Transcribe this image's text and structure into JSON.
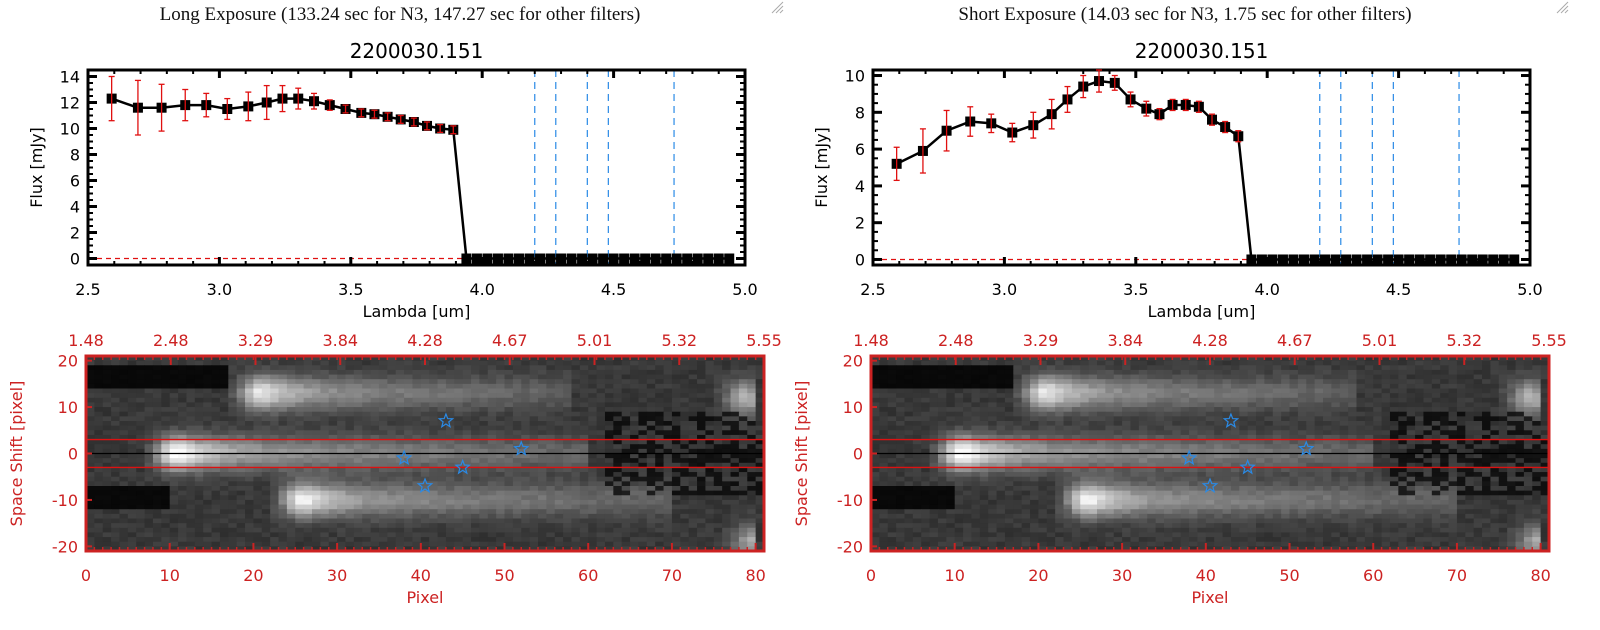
{
  "chart_data": [
    {
      "type": "line",
      "caption": "Long Exposure (133.24 sec for N3, 147.27 sec for other filters)",
      "title": "2200030.151",
      "xlabel": "Lambda [um]",
      "ylabel": "Flux [mJy]",
      "xlim": [
        2.5,
        5.0
      ],
      "ylim": [
        -0.5,
        14.5
      ],
      "xticks": [
        "2.5",
        "3.0",
        "3.5",
        "4.0",
        "4.5",
        "5.0"
      ],
      "yticks": [
        "0",
        "2",
        "4",
        "6",
        "8",
        "10",
        "12",
        "14"
      ],
      "filter_lines_x": [
        4.2,
        4.28,
        4.4,
        4.48,
        4.73
      ],
      "zero_line": 0,
      "series": [
        {
          "name": "flux",
          "x": [
            2.59,
            2.69,
            2.78,
            2.87,
            2.95,
            3.03,
            3.11,
            3.18,
            3.24,
            3.3,
            3.36,
            3.42,
            3.48,
            3.54,
            3.59,
            3.64,
            3.69,
            3.74,
            3.79,
            3.84,
            3.89,
            3.94,
            3.98,
            4.02,
            4.06,
            4.1,
            4.14,
            4.18,
            4.22,
            4.26,
            4.3,
            4.34,
            4.38,
            4.42,
            4.46,
            4.5,
            4.54,
            4.58,
            4.62,
            4.66,
            4.7,
            4.74,
            4.78,
            4.82,
            4.86,
            4.9,
            4.94
          ],
          "y": [
            12.3,
            11.6,
            11.6,
            11.8,
            11.8,
            11.5,
            11.7,
            12.0,
            12.3,
            12.3,
            12.1,
            11.8,
            11.5,
            11.2,
            11.1,
            10.9,
            10.7,
            10.5,
            10.2,
            10.0,
            9.9,
            0,
            0,
            0,
            0,
            0,
            0,
            0,
            0,
            0,
            0,
            0,
            0,
            0,
            0,
            0,
            0,
            0,
            0,
            0,
            0,
            0,
            0,
            0,
            0,
            0,
            0
          ],
          "err": [
            1.7,
            2.1,
            1.8,
            1.2,
            0.9,
            0.8,
            1.1,
            1.3,
            1.0,
            0.8,
            0.6,
            0.4,
            0.3,
            0.3,
            0.3,
            0.3,
            0.3,
            0.3,
            0.3,
            0.3,
            0.3,
            0,
            0,
            0,
            0,
            0,
            0,
            0,
            0,
            0,
            0,
            0,
            0,
            0,
            0,
            0,
            0,
            0,
            0,
            0,
            0,
            0,
            0,
            0,
            0,
            0,
            0
          ]
        }
      ]
    },
    {
      "type": "line",
      "caption": "Short Exposure (14.03 sec for N3, 1.75 sec for other filters)",
      "title": "2200030.151",
      "xlabel": "Lambda [um]",
      "ylabel": "Flux [mJy]",
      "xlim": [
        2.5,
        5.0
      ],
      "ylim": [
        -0.3,
        10.3
      ],
      "xticks": [
        "2.5",
        "3.0",
        "3.5",
        "4.0",
        "4.5",
        "5.0"
      ],
      "yticks": [
        "0",
        "2",
        "4",
        "6",
        "8",
        "10"
      ],
      "filter_lines_x": [
        4.2,
        4.28,
        4.4,
        4.48,
        4.73
      ],
      "zero_line": 0,
      "series": [
        {
          "name": "flux",
          "x": [
            2.59,
            2.69,
            2.78,
            2.87,
            2.95,
            3.03,
            3.11,
            3.18,
            3.24,
            3.3,
            3.36,
            3.42,
            3.48,
            3.54,
            3.59,
            3.64,
            3.69,
            3.74,
            3.79,
            3.84,
            3.89,
            3.94,
            3.98,
            4.02,
            4.06,
            4.1,
            4.14,
            4.18,
            4.22,
            4.26,
            4.3,
            4.34,
            4.38,
            4.42,
            4.46,
            4.5,
            4.54,
            4.58,
            4.62,
            4.66,
            4.7,
            4.74,
            4.78,
            4.82,
            4.86,
            4.9,
            4.94
          ],
          "y": [
            5.2,
            5.9,
            7.0,
            7.5,
            7.4,
            6.9,
            7.3,
            7.9,
            8.7,
            9.4,
            9.7,
            9.6,
            8.7,
            8.2,
            7.9,
            8.4,
            8.4,
            8.3,
            7.6,
            7.2,
            6.7,
            0,
            0,
            0,
            0,
            0,
            0,
            0,
            0,
            0,
            0,
            0,
            0,
            0,
            0,
            0,
            0,
            0,
            0,
            0,
            0,
            0,
            0,
            0,
            0,
            0,
            0
          ],
          "err": [
            0.9,
            1.2,
            1.1,
            0.8,
            0.5,
            0.5,
            0.7,
            0.8,
            0.7,
            0.6,
            0.6,
            0.4,
            0.4,
            0.4,
            0.3,
            0.3,
            0.3,
            0.3,
            0.3,
            0.3,
            0.3,
            0,
            0,
            0,
            0,
            0,
            0,
            0,
            0,
            0,
            0,
            0,
            0,
            0,
            0,
            0,
            0,
            0,
            0,
            0,
            0,
            0,
            0,
            0,
            0,
            0,
            0
          ]
        }
      ]
    },
    {
      "type": "heatmap",
      "name": "long-exposure-2d-spectrum",
      "xlabel": "Pixel",
      "ylabel": "Space Shift [pixel]",
      "xlim": [
        0,
        81
      ],
      "ylim": [
        -21,
        21
      ],
      "xticks": [
        "0",
        "10",
        "20",
        "30",
        "40",
        "50",
        "60",
        "70",
        "80"
      ],
      "yticks": [
        "-20",
        "-10",
        "0",
        "10",
        "20"
      ],
      "top_xticks": [
        "1.48",
        "2.48",
        "3.29",
        "3.84",
        "4.28",
        "4.67",
        "5.01",
        "5.32",
        "5.55"
      ],
      "aperture_lines_y": [
        3,
        -3
      ],
      "center_line_y": 0,
      "star_markers": [
        {
          "x": 43,
          "y": 7
        },
        {
          "x": 38,
          "y": -1
        },
        {
          "x": 52,
          "y": 1
        },
        {
          "x": 45,
          "y": -3
        },
        {
          "x": 40.5,
          "y": -7
        }
      ],
      "sources": [
        {
          "x": 11,
          "y": 0,
          "peak": 1.0,
          "tail_to": 60
        },
        {
          "x": 21,
          "y": 13,
          "peak": 0.85,
          "tail_to": 58
        },
        {
          "x": 26,
          "y": -10,
          "peak": 0.9,
          "tail_to": 70
        },
        {
          "x": 79,
          "y": 12,
          "peak": 0.6,
          "tail_to": 80
        },
        {
          "x": 80,
          "y": -19,
          "peak": 0.55,
          "tail_to": 80
        }
      ]
    },
    {
      "type": "heatmap",
      "name": "short-exposure-2d-spectrum",
      "xlabel": "Pixel",
      "ylabel": "Space Shift [pixel]",
      "xlim": [
        0,
        81
      ],
      "ylim": [
        -21,
        21
      ],
      "xticks": [
        "0",
        "10",
        "20",
        "30",
        "40",
        "50",
        "60",
        "70",
        "80"
      ],
      "yticks": [
        "-20",
        "-10",
        "0",
        "10",
        "20"
      ],
      "top_xticks": [
        "1.48",
        "2.48",
        "3.29",
        "3.84",
        "4.28",
        "4.67",
        "5.01",
        "5.32",
        "5.55"
      ],
      "aperture_lines_y": [
        3,
        -3
      ],
      "center_line_y": 0,
      "star_markers": [
        {
          "x": 43,
          "y": 7
        },
        {
          "x": 38,
          "y": -1
        },
        {
          "x": 52,
          "y": 1
        },
        {
          "x": 45,
          "y": -3
        },
        {
          "x": 40.5,
          "y": -7
        }
      ],
      "sources": [
        {
          "x": 11,
          "y": 0,
          "peak": 1.0,
          "tail_to": 60
        },
        {
          "x": 21,
          "y": 13,
          "peak": 0.85,
          "tail_to": 58
        },
        {
          "x": 26,
          "y": -10,
          "peak": 0.9,
          "tail_to": 70
        },
        {
          "x": 79,
          "y": 12,
          "peak": 0.6,
          "tail_to": 80
        },
        {
          "x": 80,
          "y": -19,
          "peak": 0.55,
          "tail_to": 80
        }
      ]
    }
  ],
  "colors": {
    "axis": "#000000",
    "errorbar": "#e01010",
    "filter_line": "#2a8ae6",
    "zero_line": "#e01010",
    "image_axis": "#cc2222",
    "aperture_line": "#dd1111",
    "star": "#2a8ae6"
  }
}
